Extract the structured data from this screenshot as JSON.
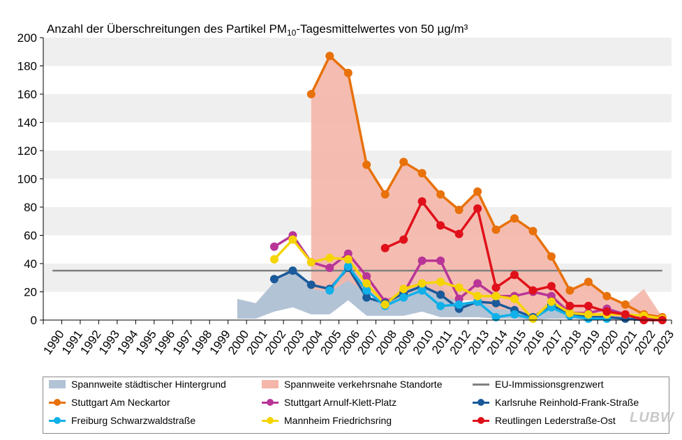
{
  "chart_data": {
    "type": "line",
    "title_prefix": "Anzahl  der Überschreitungen  des Partikel PM",
    "title_subscript": "10",
    "title_suffix": "-Tagesmittelwertes  von 50 µg/m³",
    "ylim": [
      0,
      200
    ],
    "yticks": [
      0,
      20,
      40,
      60,
      80,
      100,
      120,
      140,
      160,
      180,
      200
    ],
    "x": [
      1990,
      1991,
      1992,
      1993,
      1994,
      1995,
      1996,
      1997,
      1998,
      1999,
      2000,
      2001,
      2002,
      2003,
      2004,
      2005,
      2006,
      2007,
      2008,
      2009,
      2010,
      2011,
      2012,
      2013,
      2014,
      2015,
      2016,
      2017,
      2018,
      2019,
      2020,
      2021,
      2022,
      2023
    ],
    "xtick_labels": [
      "1990",
      "1991",
      "1992",
      "1993",
      "1994",
      "1995",
      "1996",
      "1997",
      "1998",
      "1999",
      "2000",
      "2001",
      "2002",
      "2003",
      "2004",
      "2005",
      "2006",
      "2007",
      "2008",
      "2009",
      "2010",
      "2011",
      "2012",
      "2013",
      "2014",
      "2015",
      "2016",
      "2017",
      "2018",
      "2019",
      "2020",
      "2021",
      "2022",
      "2023"
    ],
    "limit": {
      "name": "EU-Immissionsgrenzwert",
      "value": 35,
      "color": "#808080"
    },
    "bands": [
      {
        "name": "Spannweite städtischer Hintergrund",
        "color": "#b3c3d6",
        "x": [
          2000,
          2001,
          2002,
          2003,
          2004,
          2005,
          2006,
          2007,
          2008,
          2009,
          2010,
          2011,
          2012,
          2013,
          2014,
          2015,
          2016,
          2017,
          2018,
          2019,
          2020,
          2021,
          2022,
          2023
        ],
        "low": [
          1,
          1,
          6,
          9,
          4,
          4,
          14,
          3,
          3,
          3,
          6,
          2,
          2,
          2,
          1,
          1,
          0,
          1,
          1,
          0,
          0,
          0,
          0,
          0
        ],
        "high": [
          15,
          12,
          27,
          38,
          25,
          25,
          37,
          17,
          12,
          20,
          27,
          25,
          12,
          14,
          10,
          6,
          3,
          9,
          6,
          4,
          3,
          2,
          1,
          1
        ]
      },
      {
        "name": "Spannweite verkehrsnahe Standorte",
        "color": "#f4b6a9",
        "x": [
          2004,
          2005,
          2006,
          2007,
          2008,
          2009,
          2010,
          2011,
          2012,
          2013,
          2014,
          2015,
          2016,
          2017,
          2018,
          2019,
          2020,
          2021,
          2022,
          2023
        ],
        "low": [
          22,
          20,
          28,
          19,
          12,
          16,
          24,
          16,
          14,
          14,
          8,
          7,
          2,
          9,
          3,
          2,
          1,
          1,
          1,
          1
        ],
        "high": [
          160,
          187,
          175,
          110,
          89,
          112,
          104,
          89,
          78,
          91,
          64,
          72,
          63,
          45,
          21,
          27,
          17,
          11,
          22,
          2
        ]
      }
    ],
    "series": [
      {
        "name": "Stuttgart Am Neckartor",
        "color": "#e8710a",
        "points": [
          [
            2004,
            160
          ],
          [
            2005,
            187
          ],
          [
            2006,
            175
          ],
          [
            2007,
            110
          ],
          [
            2008,
            89
          ],
          [
            2009,
            112
          ],
          [
            2010,
            104
          ],
          [
            2011,
            89
          ],
          [
            2012,
            78
          ],
          [
            2013,
            91
          ],
          [
            2014,
            64
          ],
          [
            2015,
            72
          ],
          [
            2016,
            63
          ],
          [
            2017,
            45
          ],
          [
            2018,
            21
          ],
          [
            2019,
            27
          ],
          [
            2020,
            17
          ],
          [
            2021,
            11
          ],
          [
            2022,
            4
          ],
          [
            2023,
            2
          ]
        ]
      },
      {
        "name": "Stuttgart Arnulf-Klett-Platz",
        "color": "#b83597",
        "points": [
          [
            2002,
            52
          ],
          [
            2003,
            60
          ],
          [
            2004,
            41
          ],
          [
            2005,
            37
          ],
          [
            2006,
            47
          ],
          [
            2007,
            31
          ],
          [
            2008,
            13
          ],
          [
            2009,
            19
          ],
          [
            2010,
            42
          ],
          [
            2011,
            42
          ],
          [
            2012,
            15
          ],
          [
            2013,
            26
          ],
          [
            2014,
            17
          ],
          [
            2015,
            17
          ],
          [
            2016,
            20
          ],
          [
            2017,
            17
          ],
          [
            2018,
            5
          ],
          [
            2019,
            5
          ],
          [
            2020,
            8
          ],
          [
            2021,
            4
          ],
          [
            2022,
            1
          ],
          [
            2023,
            0
          ]
        ]
      },
      {
        "name": "Karlsruhe Reinhold-Frank-Straße",
        "color": "#1a5a9a",
        "points": [
          [
            2002,
            29
          ],
          [
            2003,
            35
          ],
          [
            2004,
            25
          ],
          [
            2005,
            22
          ],
          [
            2006,
            37
          ],
          [
            2007,
            16
          ],
          [
            2008,
            12
          ],
          [
            2009,
            19
          ],
          [
            2010,
            24
          ],
          [
            2011,
            18
          ],
          [
            2012,
            8
          ],
          [
            2013,
            13
          ],
          [
            2014,
            12
          ],
          [
            2015,
            7
          ],
          [
            2016,
            2
          ],
          [
            2017,
            11
          ],
          [
            2018,
            4
          ],
          [
            2019,
            2
          ],
          [
            2020,
            2
          ],
          [
            2021,
            1
          ],
          [
            2022,
            0
          ],
          [
            2023,
            0
          ]
        ]
      },
      {
        "name": "Freiburg Schwarzwaldstraße",
        "color": "#10b0e8",
        "points": [
          [
            2005,
            21
          ],
          [
            2006,
            38
          ],
          [
            2007,
            21
          ],
          [
            2008,
            10
          ],
          [
            2009,
            16
          ],
          [
            2010,
            21
          ],
          [
            2011,
            10
          ],
          [
            2012,
            11
          ],
          [
            2013,
            13
          ],
          [
            2014,
            2
          ],
          [
            2015,
            4
          ],
          [
            2016,
            1
          ],
          [
            2017,
            9
          ],
          [
            2018,
            3
          ],
          [
            2019,
            1
          ],
          [
            2020,
            1
          ]
        ]
      },
      {
        "name": "Mannheim Friedrichsring",
        "color": "#f5d400",
        "points": [
          [
            2002,
            43
          ],
          [
            2003,
            57
          ],
          [
            2004,
            41
          ],
          [
            2005,
            44
          ],
          [
            2006,
            43
          ],
          [
            2007,
            26
          ],
          [
            2008,
            11
          ],
          [
            2009,
            22
          ],
          [
            2010,
            26
          ],
          [
            2011,
            27
          ],
          [
            2012,
            23
          ],
          [
            2013,
            17
          ],
          [
            2014,
            17
          ],
          [
            2015,
            15
          ],
          [
            2016,
            1
          ],
          [
            2017,
            13
          ],
          [
            2018,
            5
          ],
          [
            2019,
            4
          ],
          [
            2020,
            4
          ],
          [
            2021,
            4
          ],
          [
            2022,
            3
          ],
          [
            2023,
            1
          ]
        ]
      },
      {
        "name": "Reutlingen Lederstraße-Ost",
        "color": "#e0101a",
        "points": [
          [
            2008,
            51
          ],
          [
            2009,
            57
          ],
          [
            2010,
            84
          ],
          [
            2011,
            67
          ],
          [
            2012,
            61
          ],
          [
            2013,
            79
          ],
          [
            2014,
            23
          ],
          [
            2015,
            32
          ],
          [
            2016,
            21
          ],
          [
            2017,
            24
          ],
          [
            2018,
            10
          ],
          [
            2019,
            10
          ],
          [
            2020,
            6
          ],
          [
            2021,
            4
          ],
          [
            2022,
            0
          ],
          [
            2023,
            0
          ]
        ]
      }
    ],
    "legend": [
      {
        "label": "Spannweite städtischer Hintergrund",
        "kind": "band",
        "color": "#b3c3d6"
      },
      {
        "label": "Spannweite verkehrsnahe Standorte",
        "kind": "band",
        "color": "#f4b6a9"
      },
      {
        "label": "EU-Immissionsgrenzwert",
        "kind": "line",
        "color": "#808080"
      },
      {
        "label": "Stuttgart Am Neckartor",
        "kind": "marker",
        "color": "#e8710a"
      },
      {
        "label": "Stuttgart Arnulf-Klett-Platz",
        "kind": "marker",
        "color": "#b83597"
      },
      {
        "label": "Karlsruhe Reinhold-Frank-Straße",
        "kind": "marker",
        "color": "#1a5a9a"
      },
      {
        "label": "Freiburg Schwarzwaldstraße",
        "kind": "marker",
        "color": "#10b0e8"
      },
      {
        "label": "Mannheim Friedrichsring",
        "kind": "marker",
        "color": "#f5d400"
      },
      {
        "label": "Reutlingen Lederstraße-Ost",
        "kind": "marker",
        "color": "#e0101a"
      }
    ]
  },
  "logo": {
    "text": "LUBW"
  }
}
